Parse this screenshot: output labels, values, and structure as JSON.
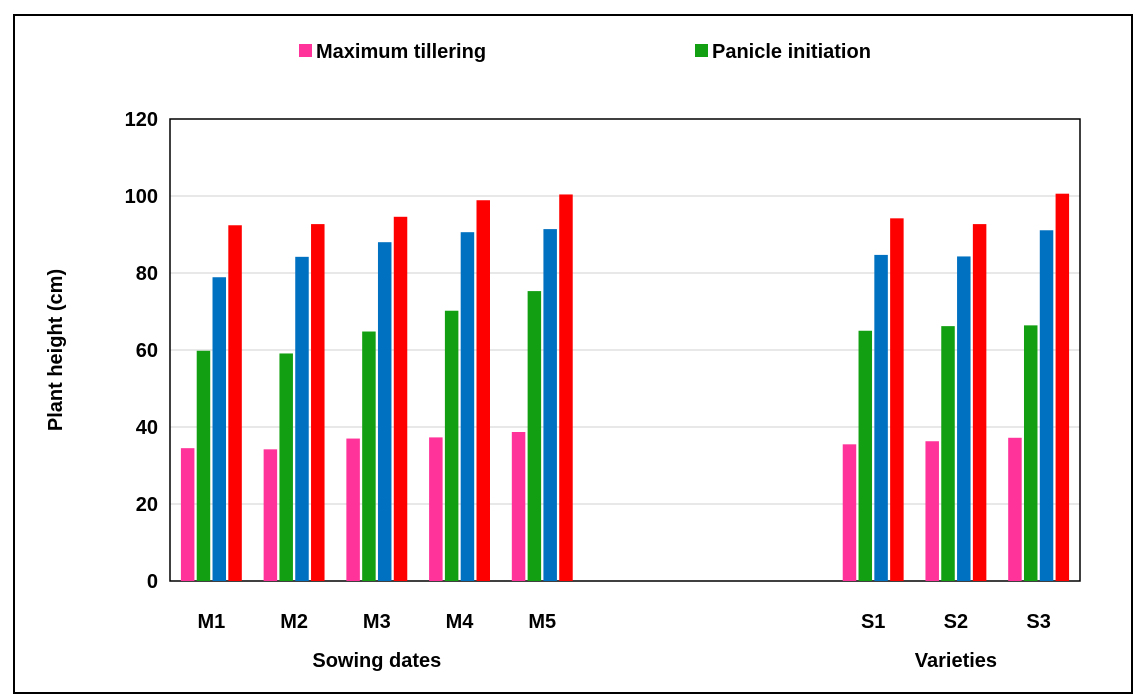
{
  "chart_data": {
    "type": "bar",
    "ylabel": "Plant height (cm)",
    "ylim": [
      0,
      120
    ],
    "yticks": [
      0,
      20,
      40,
      60,
      80,
      100,
      120
    ],
    "grid": true,
    "legend_position": "top",
    "groups": [
      {
        "label": "Sowing dates",
        "categories": [
          "M1",
          "M2",
          "M3",
          "M4",
          "M5"
        ]
      },
      {
        "label": "Varieties",
        "categories": [
          "S1",
          "S2",
          "S3"
        ]
      }
    ],
    "categories": [
      "M1",
      "M2",
      "M3",
      "M4",
      "M5",
      "S1",
      "S2",
      "S3"
    ],
    "series": [
      {
        "name": "Maximum tillering",
        "color": "#ff3399",
        "values": [
          34.5,
          34.2,
          37.0,
          37.3,
          38.7,
          35.5,
          36.3,
          37.2
        ]
      },
      {
        "name": "Panicle initiation",
        "color": "#12a012",
        "values": [
          59.8,
          59.1,
          64.8,
          70.2,
          75.3,
          65.0,
          66.2,
          66.4
        ]
      },
      {
        "name": "",
        "color": "#0070c0",
        "values": [
          78.9,
          84.2,
          88.0,
          90.6,
          91.4,
          84.7,
          84.3,
          91.1
        ]
      },
      {
        "name": "",
        "color": "#ff0000",
        "values": [
          92.4,
          92.7,
          94.6,
          98.9,
          100.4,
          94.2,
          92.7,
          100.6
        ]
      }
    ]
  }
}
